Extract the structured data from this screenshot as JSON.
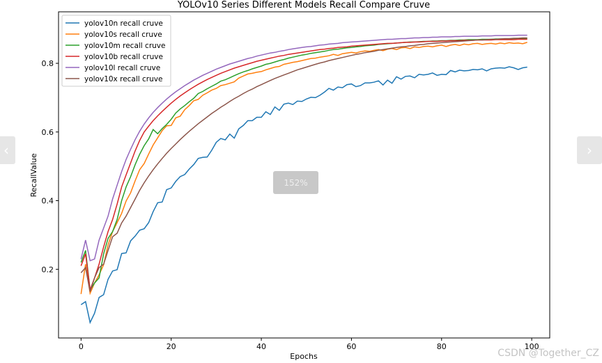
{
  "viewer": {
    "prev_icon": "chevron-left-icon",
    "next_icon": "chevron-right-icon",
    "prev_glyph": "‹",
    "next_glyph": "›",
    "zoom_label": "152%",
    "watermark": "CSDN @Together_CZ"
  },
  "chart_data": {
    "type": "line",
    "title": "YOLOv10 Series Different Models Recall Compare Cruve",
    "xlabel": "Epochs",
    "ylabel": "RecallValue",
    "xlim": [
      -5,
      104
    ],
    "ylim": [
      0.0,
      0.95
    ],
    "xticks": [
      0,
      20,
      40,
      60,
      80,
      100
    ],
    "yticks": [
      0.2,
      0.4,
      0.6,
      0.8
    ],
    "grid": false,
    "legend": "top-left",
    "x": [
      0,
      1,
      2,
      3,
      4,
      5,
      6,
      7,
      8,
      9,
      10,
      11,
      12,
      13,
      14,
      15,
      16,
      17,
      18,
      19,
      20,
      21,
      22,
      23,
      24,
      25,
      26,
      27,
      28,
      29,
      30,
      31,
      32,
      33,
      34,
      35,
      36,
      37,
      38,
      39,
      40,
      41,
      42,
      43,
      44,
      45,
      46,
      47,
      48,
      49,
      50,
      51,
      52,
      53,
      54,
      55,
      56,
      57,
      58,
      59,
      60,
      61,
      62,
      63,
      64,
      65,
      66,
      67,
      68,
      69,
      70,
      71,
      72,
      73,
      74,
      75,
      76,
      77,
      78,
      79,
      80,
      81,
      82,
      83,
      84,
      85,
      86,
      87,
      88,
      89,
      90,
      91,
      92,
      93,
      94,
      95,
      96,
      97,
      98,
      99
    ],
    "series": [
      {
        "name": "yolov10n recall cruve",
        "color": "#1f77b4",
        "values": [
          0.097,
          0.106,
          0.045,
          0.072,
          0.118,
          0.126,
          0.171,
          0.195,
          0.199,
          0.246,
          0.248,
          0.283,
          0.297,
          0.314,
          0.318,
          0.336,
          0.368,
          0.394,
          0.396,
          0.432,
          0.437,
          0.456,
          0.47,
          0.476,
          0.492,
          0.505,
          0.523,
          0.526,
          0.527,
          0.547,
          0.57,
          0.581,
          0.577,
          0.594,
          0.582,
          0.609,
          0.619,
          0.633,
          0.633,
          0.643,
          0.643,
          0.659,
          0.651,
          0.673,
          0.663,
          0.681,
          0.684,
          0.68,
          0.69,
          0.689,
          0.696,
          0.701,
          0.7,
          0.707,
          0.716,
          0.727,
          0.722,
          0.731,
          0.729,
          0.738,
          0.74,
          0.732,
          0.735,
          0.743,
          0.743,
          0.745,
          0.749,
          0.737,
          0.751,
          0.742,
          0.761,
          0.754,
          0.762,
          0.763,
          0.758,
          0.768,
          0.766,
          0.768,
          0.772,
          0.765,
          0.768,
          0.767,
          0.779,
          0.775,
          0.78,
          0.778,
          0.779,
          0.782,
          0.781,
          0.784,
          0.778,
          0.784,
          0.786,
          0.787,
          0.786,
          0.79,
          0.787,
          0.782,
          0.787,
          0.789
        ]
      },
      {
        "name": "yolov10s recall cruve",
        "color": "#ff7f0e",
        "values": [
          0.128,
          0.215,
          0.13,
          0.16,
          0.184,
          0.213,
          0.271,
          0.31,
          0.336,
          0.363,
          0.399,
          0.423,
          0.458,
          0.49,
          0.508,
          0.536,
          0.562,
          0.583,
          0.604,
          0.618,
          0.619,
          0.641,
          0.646,
          0.665,
          0.677,
          0.691,
          0.695,
          0.707,
          0.714,
          0.722,
          0.727,
          0.735,
          0.738,
          0.742,
          0.746,
          0.757,
          0.763,
          0.769,
          0.771,
          0.774,
          0.776,
          0.781,
          0.785,
          0.789,
          0.791,
          0.797,
          0.8,
          0.803,
          0.805,
          0.808,
          0.811,
          0.814,
          0.815,
          0.818,
          0.82,
          0.822,
          0.826,
          0.823,
          0.828,
          0.83,
          0.832,
          0.83,
          0.834,
          0.836,
          0.835,
          0.838,
          0.84,
          0.837,
          0.841,
          0.843,
          0.84,
          0.845,
          0.846,
          0.843,
          0.848,
          0.846,
          0.849,
          0.85,
          0.848,
          0.851,
          0.853,
          0.849,
          0.853,
          0.855,
          0.852,
          0.856,
          0.854,
          0.857,
          0.858,
          0.855,
          0.857,
          0.858,
          0.856,
          0.859,
          0.857,
          0.86,
          0.858,
          0.859,
          0.857,
          0.861
        ]
      },
      {
        "name": "yolov10m recall cruve",
        "color": "#2ca02c",
        "values": [
          0.22,
          0.255,
          0.14,
          0.16,
          0.175,
          0.245,
          0.29,
          0.31,
          0.345,
          0.4,
          0.44,
          0.47,
          0.505,
          0.535,
          0.56,
          0.58,
          0.607,
          0.595,
          0.61,
          0.622,
          0.637,
          0.655,
          0.667,
          0.677,
          0.688,
          0.698,
          0.712,
          0.718,
          0.726,
          0.733,
          0.74,
          0.748,
          0.752,
          0.758,
          0.764,
          0.77,
          0.775,
          0.779,
          0.784,
          0.788,
          0.792,
          0.797,
          0.8,
          0.804,
          0.808,
          0.811,
          0.815,
          0.818,
          0.821,
          0.824,
          0.826,
          0.829,
          0.831,
          0.833,
          0.835,
          0.838,
          0.84,
          0.841,
          0.843,
          0.845,
          0.846,
          0.848,
          0.849,
          0.851,
          0.852,
          0.853,
          0.855,
          0.856,
          0.857,
          0.858,
          0.859,
          0.86,
          0.861,
          0.862,
          0.862,
          0.863,
          0.864,
          0.864,
          0.865,
          0.865,
          0.866,
          0.866,
          0.867,
          0.867,
          0.868,
          0.868,
          0.869,
          0.869,
          0.869,
          0.87,
          0.87,
          0.87,
          0.871,
          0.871,
          0.871,
          0.871,
          0.872,
          0.872,
          0.872,
          0.872
        ]
      },
      {
        "name": "yolov10b recall cruve",
        "color": "#d62728",
        "values": [
          0.21,
          0.245,
          0.14,
          0.175,
          0.215,
          0.265,
          0.31,
          0.345,
          0.39,
          0.44,
          0.475,
          0.51,
          0.545,
          0.575,
          0.6,
          0.617,
          0.633,
          0.647,
          0.66,
          0.672,
          0.684,
          0.695,
          0.705,
          0.714,
          0.723,
          0.731,
          0.739,
          0.746,
          0.753,
          0.759,
          0.765,
          0.771,
          0.776,
          0.781,
          0.786,
          0.79,
          0.794,
          0.798,
          0.802,
          0.806,
          0.809,
          0.812,
          0.815,
          0.818,
          0.821,
          0.823,
          0.826,
          0.828,
          0.83,
          0.832,
          0.834,
          0.836,
          0.838,
          0.84,
          0.841,
          0.843,
          0.844,
          0.846,
          0.847,
          0.848,
          0.85,
          0.851,
          0.852,
          0.853,
          0.854,
          0.855,
          0.856,
          0.857,
          0.858,
          0.858,
          0.859,
          0.86,
          0.861,
          0.861,
          0.862,
          0.862,
          0.863,
          0.864,
          0.864,
          0.864,
          0.865,
          0.865,
          0.866,
          0.866,
          0.866,
          0.867,
          0.867,
          0.867,
          0.868,
          0.868,
          0.868,
          0.868,
          0.869,
          0.869,
          0.869,
          0.869,
          0.869,
          0.87,
          0.87,
          0.87
        ]
      },
      {
        "name": "yolov10l recall cruve",
        "color": "#9467bd",
        "values": [
          0.23,
          0.285,
          0.225,
          0.23,
          0.285,
          0.32,
          0.355,
          0.405,
          0.445,
          0.485,
          0.52,
          0.55,
          0.578,
          0.602,
          0.623,
          0.641,
          0.657,
          0.671,
          0.684,
          0.696,
          0.707,
          0.717,
          0.726,
          0.735,
          0.743,
          0.751,
          0.758,
          0.765,
          0.771,
          0.777,
          0.783,
          0.788,
          0.793,
          0.798,
          0.802,
          0.806,
          0.81,
          0.814,
          0.817,
          0.821,
          0.824,
          0.827,
          0.83,
          0.832,
          0.835,
          0.837,
          0.84,
          0.842,
          0.844,
          0.846,
          0.848,
          0.849,
          0.851,
          0.853,
          0.854,
          0.856,
          0.857,
          0.858,
          0.86,
          0.861,
          0.862,
          0.863,
          0.864,
          0.865,
          0.866,
          0.867,
          0.868,
          0.869,
          0.87,
          0.87,
          0.871,
          0.872,
          0.872,
          0.873,
          0.874,
          0.874,
          0.875,
          0.875,
          0.876,
          0.876,
          0.877,
          0.877,
          0.877,
          0.878,
          0.878,
          0.879,
          0.879,
          0.879,
          0.879,
          0.88,
          0.88,
          0.88,
          0.881,
          0.881,
          0.881,
          0.881,
          0.881,
          0.882,
          0.882,
          0.882
        ]
      },
      {
        "name": "yolov10x recall cruve",
        "color": "#8c564b",
        "values": [
          0.19,
          0.205,
          0.135,
          0.175,
          0.205,
          0.215,
          0.255,
          0.295,
          0.305,
          0.335,
          0.355,
          0.38,
          0.405,
          0.43,
          0.452,
          0.472,
          0.49,
          0.507,
          0.523,
          0.538,
          0.552,
          0.565,
          0.578,
          0.59,
          0.602,
          0.613,
          0.624,
          0.634,
          0.644,
          0.654,
          0.663,
          0.672,
          0.68,
          0.689,
          0.697,
          0.704,
          0.712,
          0.719,
          0.725,
          0.732,
          0.738,
          0.744,
          0.75,
          0.756,
          0.761,
          0.766,
          0.771,
          0.776,
          0.781,
          0.785,
          0.789,
          0.793,
          0.797,
          0.801,
          0.804,
          0.808,
          0.811,
          0.814,
          0.817,
          0.82,
          0.823,
          0.826,
          0.828,
          0.831,
          0.833,
          0.835,
          0.838,
          0.84,
          0.842,
          0.844,
          0.846,
          0.848,
          0.849,
          0.851,
          0.852,
          0.854,
          0.855,
          0.857,
          0.858,
          0.859,
          0.86,
          0.861,
          0.862,
          0.863,
          0.864,
          0.865,
          0.866,
          0.867,
          0.868,
          0.868,
          0.869,
          0.87,
          0.87,
          0.871,
          0.872,
          0.872,
          0.873,
          0.873,
          0.874,
          0.874
        ]
      }
    ]
  }
}
